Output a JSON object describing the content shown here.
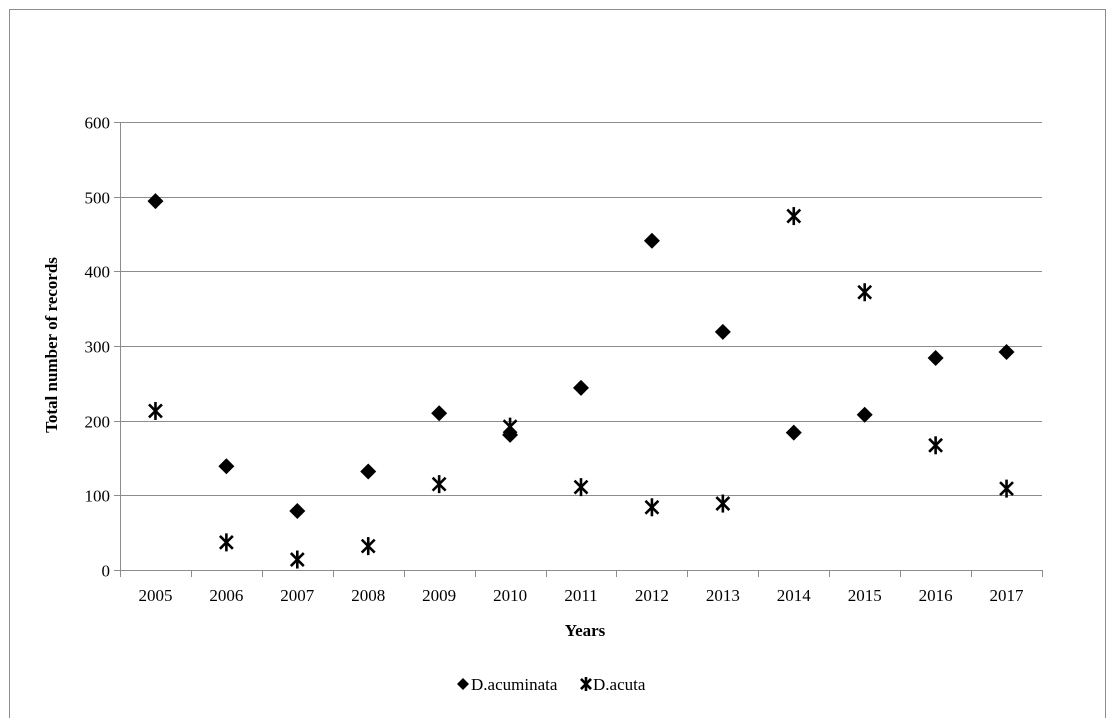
{
  "chart_data": {
    "type": "scatter",
    "title": "",
    "xlabel": "Years",
    "ylabel": "Total number of records",
    "categories": [
      "2005",
      "2006",
      "2007",
      "2008",
      "2009",
      "2010",
      "2011",
      "2012",
      "2013",
      "2014",
      "2015",
      "2016",
      "2017"
    ],
    "ylim": [
      0,
      600
    ],
    "yticks": [
      0,
      100,
      200,
      300,
      400,
      500,
      600
    ],
    "grid": "horizontal",
    "legend_position": "bottom",
    "series": [
      {
        "name": "D.acuminata",
        "marker": "diamond",
        "color": "#000000",
        "values": [
          494,
          139,
          79,
          132,
          210,
          181,
          244,
          441,
          319,
          184,
          208,
          284,
          292
        ]
      },
      {
        "name": "D.acuta",
        "marker": "asterisk",
        "color": "#000000",
        "values": [
          213,
          37,
          14,
          32,
          115,
          192,
          111,
          84,
          89,
          474,
          372,
          167,
          109
        ]
      }
    ]
  }
}
